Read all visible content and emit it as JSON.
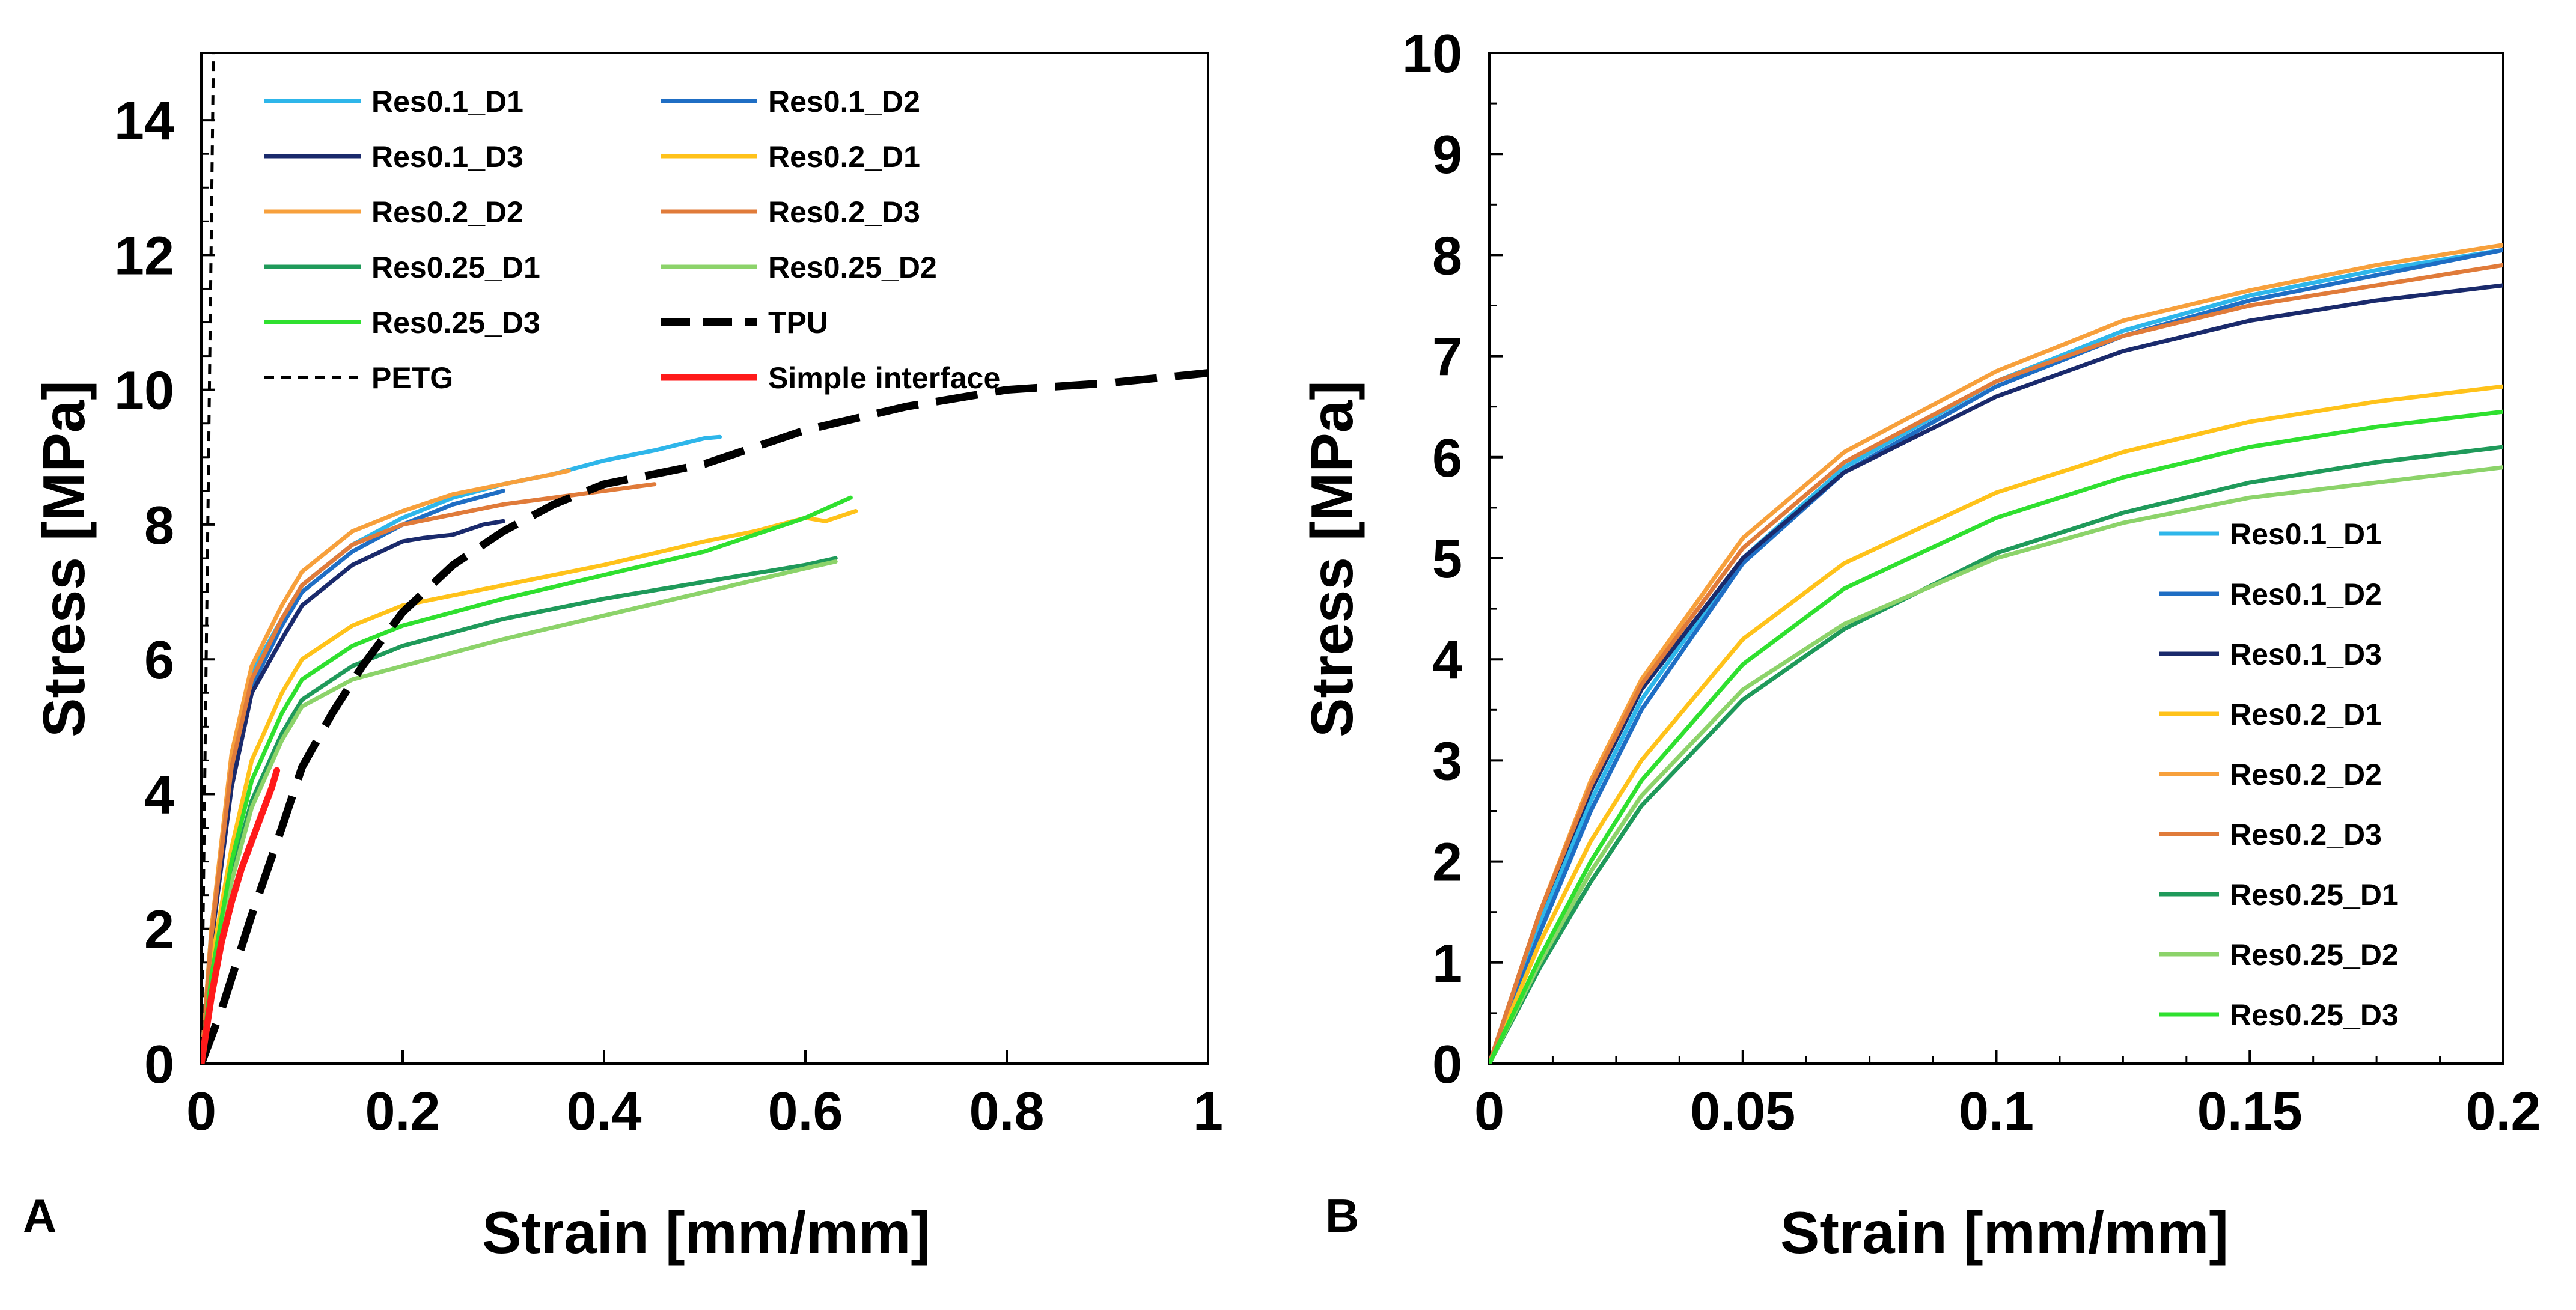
{
  "chart_data": [
    {
      "type": "line",
      "panel_label": "A",
      "xlabel": "Strain [mm/mm]",
      "ylabel": "Stress [MPa]",
      "xlim": [
        0,
        1
      ],
      "ylim": [
        0,
        15
      ],
      "xticks": [
        0,
        0.2,
        0.4,
        0.6,
        0.8,
        1
      ],
      "xtick_labels": [
        "0",
        "0.2",
        "0.4",
        "0.6",
        "0.8",
        "1"
      ],
      "yticks": [
        0,
        2,
        4,
        6,
        8,
        10,
        12,
        14
      ],
      "ytick_labels": [
        "0",
        "2",
        "4",
        "6",
        "8",
        "10",
        "12",
        "14"
      ],
      "legend_position": "top-left, two columns",
      "series": [
        {
          "name": "Res0.1_D1",
          "color": "#2eb6ea",
          "dash": "solid",
          "x": [
            0,
            0.01,
            0.03,
            0.05,
            0.08,
            0.1,
            0.15,
            0.2,
            0.25,
            0.3,
            0.35,
            0.4,
            0.45,
            0.5,
            0.515
          ],
          "y": [
            0,
            2.0,
            4.5,
            5.8,
            6.6,
            7.1,
            7.7,
            8.1,
            8.4,
            8.6,
            8.75,
            8.95,
            9.1,
            9.28,
            9.3
          ]
        },
        {
          "name": "Res0.1_D2",
          "color": "#1f6ec4",
          "dash": "solid",
          "x": [
            0,
            0.01,
            0.03,
            0.05,
            0.08,
            0.1,
            0.15,
            0.2,
            0.25,
            0.3
          ],
          "y": [
            0,
            1.9,
            4.3,
            5.6,
            6.5,
            7.0,
            7.6,
            8.0,
            8.3,
            8.5
          ]
        },
        {
          "name": "Res0.1_D3",
          "color": "#1a2a6c",
          "dash": "solid",
          "x": [
            0,
            0.01,
            0.03,
            0.05,
            0.08,
            0.1,
            0.15,
            0.2,
            0.22,
            0.25,
            0.28,
            0.3
          ],
          "y": [
            0,
            1.8,
            4.1,
            5.5,
            6.3,
            6.8,
            7.4,
            7.75,
            7.8,
            7.85,
            8.0,
            8.05
          ]
        },
        {
          "name": "Res0.2_D1",
          "color": "#ffc21a",
          "dash": "solid",
          "x": [
            0,
            0.01,
            0.03,
            0.05,
            0.08,
            0.1,
            0.15,
            0.2,
            0.3,
            0.4,
            0.5,
            0.55,
            0.6,
            0.62,
            0.65
          ],
          "y": [
            0,
            1.5,
            3.2,
            4.5,
            5.5,
            6.0,
            6.5,
            6.8,
            7.1,
            7.4,
            7.75,
            7.9,
            8.1,
            8.05,
            8.2
          ]
        },
        {
          "name": "Res0.2_D2",
          "color": "#f7a03c",
          "dash": "solid",
          "x": [
            0,
            0.01,
            0.03,
            0.05,
            0.08,
            0.1,
            0.15,
            0.2,
            0.25,
            0.3,
            0.35,
            0.365
          ],
          "y": [
            0,
            2.0,
            4.6,
            5.9,
            6.8,
            7.3,
            7.9,
            8.2,
            8.45,
            8.6,
            8.75,
            8.8
          ]
        },
        {
          "name": "Res0.2_D3",
          "color": "#e07b3a",
          "dash": "solid",
          "x": [
            0,
            0.01,
            0.03,
            0.05,
            0.08,
            0.1,
            0.15,
            0.2,
            0.25,
            0.3,
            0.35,
            0.4,
            0.45
          ],
          "y": [
            0,
            1.9,
            4.4,
            5.7,
            6.6,
            7.1,
            7.7,
            8.0,
            8.15,
            8.3,
            8.4,
            8.5,
            8.6
          ]
        },
        {
          "name": "Res0.25_D1",
          "color": "#1f9a5a",
          "dash": "solid",
          "x": [
            0,
            0.01,
            0.03,
            0.05,
            0.08,
            0.1,
            0.15,
            0.2,
            0.3,
            0.4,
            0.5,
            0.6,
            0.63
          ],
          "y": [
            0,
            1.2,
            2.8,
            3.9,
            4.9,
            5.4,
            5.9,
            6.2,
            6.6,
            6.9,
            7.15,
            7.4,
            7.5
          ]
        },
        {
          "name": "Res0.25_D2",
          "color": "#8cd36a",
          "dash": "solid",
          "x": [
            0,
            0.01,
            0.03,
            0.05,
            0.08,
            0.1,
            0.15,
            0.2,
            0.3,
            0.4,
            0.5,
            0.6,
            0.63
          ],
          "y": [
            0,
            1.2,
            2.7,
            3.8,
            4.8,
            5.3,
            5.7,
            5.9,
            6.3,
            6.65,
            7.0,
            7.35,
            7.45
          ]
        },
        {
          "name": "Res0.25_D3",
          "color": "#2fe02f",
          "dash": "solid",
          "x": [
            0,
            0.01,
            0.03,
            0.05,
            0.08,
            0.1,
            0.15,
            0.2,
            0.3,
            0.4,
            0.5,
            0.6,
            0.645
          ],
          "y": [
            0,
            1.3,
            3.0,
            4.2,
            5.2,
            5.7,
            6.2,
            6.5,
            6.9,
            7.25,
            7.6,
            8.1,
            8.4
          ]
        },
        {
          "name": "TPU",
          "color": "#000000",
          "dash": "long-dash",
          "x": [
            0,
            0.02,
            0.05,
            0.08,
            0.1,
            0.13,
            0.16,
            0.2,
            0.25,
            0.3,
            0.35,
            0.4,
            0.5,
            0.6,
            0.7,
            0.8,
            0.9,
            1.0
          ],
          "y": [
            0,
            0.8,
            2.2,
            3.5,
            4.4,
            5.2,
            5.9,
            6.7,
            7.4,
            7.9,
            8.3,
            8.6,
            8.9,
            9.4,
            9.75,
            10.0,
            10.1,
            10.25
          ]
        },
        {
          "name": "PETG",
          "color": "#000000",
          "dash": "short-dash",
          "x": [
            0,
            0.002,
            0.004,
            0.006,
            0.008,
            0.01,
            0.012
          ],
          "y": [
            0,
            2.5,
            5,
            7.5,
            10,
            12.5,
            15
          ]
        },
        {
          "name": "Simple interface",
          "color": "#ff1a1a",
          "dash": "solid",
          "x": [
            0,
            0.01,
            0.02,
            0.03,
            0.04,
            0.05,
            0.06,
            0.07,
            0.075
          ],
          "y": [
            0,
            1.0,
            1.8,
            2.4,
            2.9,
            3.3,
            3.7,
            4.1,
            4.35
          ]
        }
      ]
    },
    {
      "type": "line",
      "panel_label": "B",
      "xlabel": "Strain [mm/mm]",
      "ylabel": "Stress [MPa]",
      "xlim": [
        0,
        0.2
      ],
      "ylim": [
        0,
        10
      ],
      "xticks": [
        0,
        0.05,
        0.1,
        0.15,
        0.2
      ],
      "xtick_labels": [
        "0",
        "0.05",
        "0.1",
        "0.15",
        "0.2"
      ],
      "yticks": [
        0,
        1,
        2,
        3,
        4,
        5,
        6,
        7,
        8,
        9,
        10
      ],
      "ytick_labels": [
        "0",
        "1",
        "2",
        "3",
        "4",
        "5",
        "6",
        "7",
        "8",
        "9",
        "10"
      ],
      "legend_position": "bottom-right, one column",
      "series": [
        {
          "name": "Res0.1_D1",
          "color": "#2eb6ea",
          "dash": "solid",
          "x": [
            0,
            0.01,
            0.02,
            0.03,
            0.05,
            0.07,
            0.1,
            0.125,
            0.15,
            0.175,
            0.2
          ],
          "y": [
            0,
            1.4,
            2.6,
            3.6,
            5.0,
            5.9,
            6.75,
            7.25,
            7.6,
            7.85,
            8.05
          ]
        },
        {
          "name": "Res0.1_D2",
          "color": "#1f6ec4",
          "dash": "solid",
          "x": [
            0,
            0.01,
            0.02,
            0.03,
            0.05,
            0.07,
            0.1,
            0.125,
            0.15,
            0.175,
            0.2
          ],
          "y": [
            0,
            1.3,
            2.5,
            3.5,
            4.95,
            5.85,
            6.7,
            7.2,
            7.55,
            7.8,
            8.05
          ]
        },
        {
          "name": "Res0.1_D3",
          "color": "#1a2a6c",
          "dash": "solid",
          "x": [
            0,
            0.01,
            0.02,
            0.03,
            0.05,
            0.07,
            0.1,
            0.125,
            0.15,
            0.175,
            0.2
          ],
          "y": [
            0,
            1.5,
            2.7,
            3.7,
            5.0,
            5.85,
            6.6,
            7.05,
            7.35,
            7.55,
            7.7
          ]
        },
        {
          "name": "Res0.2_D1",
          "color": "#ffc21a",
          "dash": "solid",
          "x": [
            0,
            0.01,
            0.02,
            0.03,
            0.05,
            0.07,
            0.1,
            0.125,
            0.15,
            0.175,
            0.2
          ],
          "y": [
            0,
            1.2,
            2.2,
            3.0,
            4.2,
            4.95,
            5.65,
            6.05,
            6.35,
            6.55,
            6.7
          ]
        },
        {
          "name": "Res0.2_D2",
          "color": "#f7a03c",
          "dash": "solid",
          "x": [
            0,
            0.01,
            0.02,
            0.03,
            0.05,
            0.07,
            0.1,
            0.125,
            0.15,
            0.175,
            0.2
          ],
          "y": [
            0,
            1.5,
            2.8,
            3.8,
            5.2,
            6.05,
            6.85,
            7.35,
            7.65,
            7.9,
            8.1
          ]
        },
        {
          "name": "Res0.2_D3",
          "color": "#e07b3a",
          "dash": "solid",
          "x": [
            0,
            0.01,
            0.02,
            0.03,
            0.05,
            0.07,
            0.1,
            0.125,
            0.15,
            0.175,
            0.2
          ],
          "y": [
            0,
            1.5,
            2.75,
            3.75,
            5.1,
            5.95,
            6.75,
            7.2,
            7.5,
            7.7,
            7.9
          ]
        },
        {
          "name": "Res0.25_D1",
          "color": "#1f9a5a",
          "dash": "solid",
          "x": [
            0,
            0.01,
            0.02,
            0.03,
            0.05,
            0.07,
            0.1,
            0.125,
            0.15,
            0.175,
            0.2
          ],
          "y": [
            0,
            0.95,
            1.8,
            2.55,
            3.6,
            4.3,
            5.05,
            5.45,
            5.75,
            5.95,
            6.1
          ]
        },
        {
          "name": "Res0.25_D2",
          "color": "#8cd36a",
          "dash": "solid",
          "x": [
            0,
            0.01,
            0.02,
            0.03,
            0.05,
            0.07,
            0.1,
            0.125,
            0.15,
            0.175,
            0.2
          ],
          "y": [
            0,
            1.0,
            1.9,
            2.65,
            3.7,
            4.35,
            5.0,
            5.35,
            5.6,
            5.75,
            5.9
          ]
        },
        {
          "name": "Res0.25_D3",
          "color": "#2fe02f",
          "dash": "solid",
          "x": [
            0,
            0.01,
            0.02,
            0.03,
            0.05,
            0.07,
            0.1,
            0.125,
            0.15,
            0.175,
            0.2
          ],
          "y": [
            0,
            1.05,
            2.0,
            2.8,
            3.95,
            4.7,
            5.4,
            5.8,
            6.1,
            6.3,
            6.45
          ]
        }
      ]
    }
  ]
}
